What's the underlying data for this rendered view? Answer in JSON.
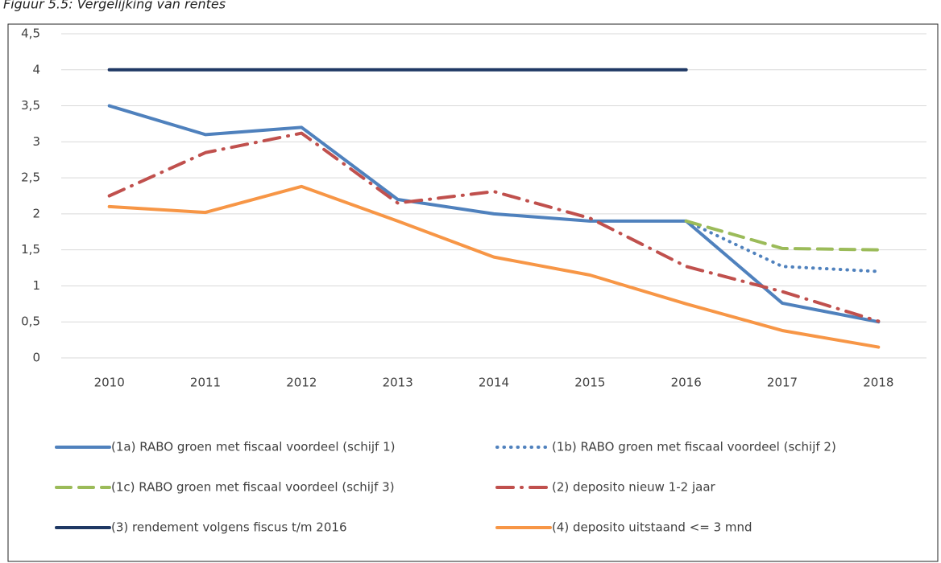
{
  "chart_data": {
    "type": "line",
    "title": "Figuur 5.5: Vergelijking van rentes",
    "categories": [
      "2010",
      "2011",
      "2012",
      "2013",
      "2014",
      "2015",
      "2016",
      "2017",
      "2018"
    ],
    "ylim": [
      0,
      4.5
    ],
    "yticks": [
      0,
      {
        "value": 0.5,
        "label": "0,5"
      },
      1,
      {
        "value": 1.5,
        "label": "1,5"
      },
      2,
      {
        "value": 2.5,
        "label": "2,5"
      },
      3,
      {
        "value": 3.5,
        "label": "3,5"
      },
      4,
      {
        "value": 4.5,
        "label": "4,5"
      }
    ],
    "grid": true,
    "legend": "bottom",
    "series": [
      {
        "name": "(1a) RABO groen met fiscaal voordeel (schijf 1)",
        "color": "#4f81bd",
        "dash": "solid",
        "values": [
          3.5,
          3.1,
          3.2,
          2.2,
          2.0,
          1.9,
          1.9,
          0.76,
          0.5
        ]
      },
      {
        "name": "(1b) RABO groen met fiscaal voordeel (schijf 2)",
        "color": "#4f81bd",
        "dash": "dot",
        "values": [
          null,
          null,
          null,
          null,
          null,
          null,
          1.9,
          1.27,
          1.2
        ]
      },
      {
        "name": "(1c) RABO groen met fiscaal voordeel (schijf 3)",
        "color": "#9bbb59",
        "dash": "dash",
        "values": [
          null,
          null,
          null,
          null,
          null,
          null,
          1.9,
          1.52,
          1.5
        ]
      },
      {
        "name": "(2) deposito nieuw 1-2 jaar",
        "color": "#c0504d",
        "dash": "dashdot",
        "values": [
          2.25,
          2.85,
          3.12,
          2.15,
          2.31,
          1.94,
          1.27,
          0.92,
          0.51
        ]
      },
      {
        "name": "(3) rendement volgens fiscus t/m 2016",
        "color": "#1f3864",
        "dash": "solid",
        "values": [
          4,
          4,
          4,
          4,
          4,
          4,
          4,
          null,
          null
        ]
      },
      {
        "name": "(4) deposito uitstaand <= 3 mnd",
        "color": "#f79646",
        "dash": "solid",
        "values": [
          2.1,
          2.02,
          2.38,
          1.9,
          1.4,
          1.15,
          0.75,
          0.38,
          0.15
        ]
      }
    ]
  }
}
